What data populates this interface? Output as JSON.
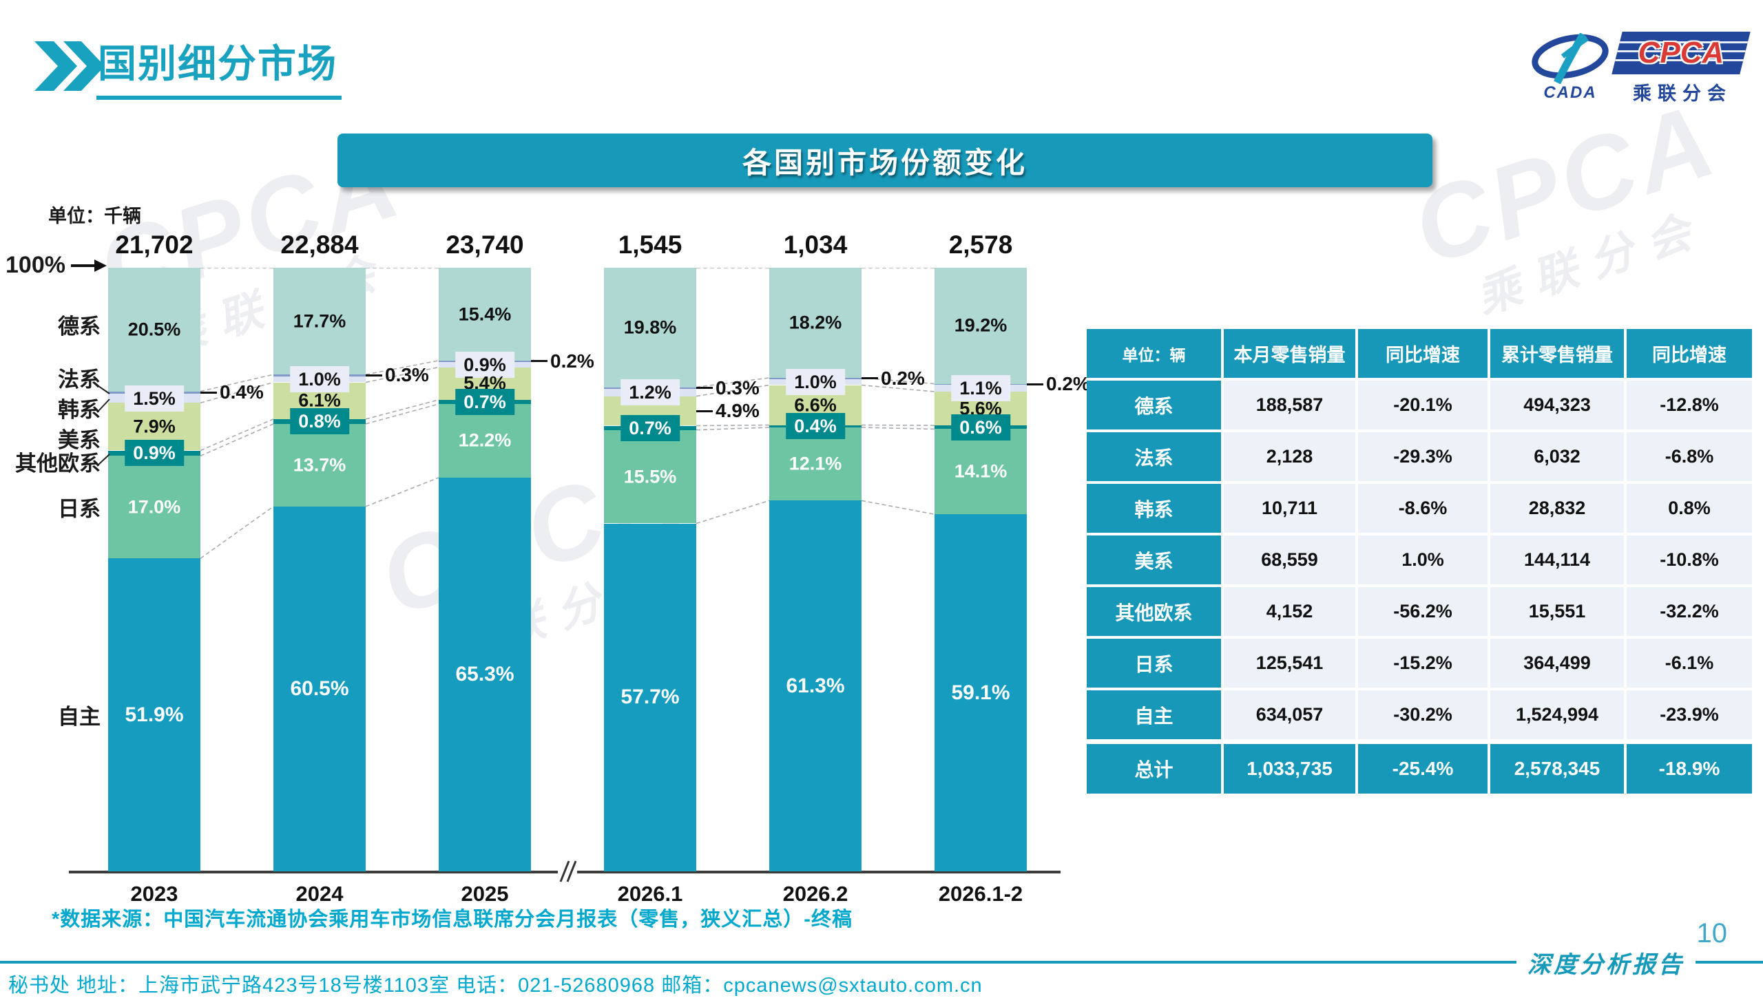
{
  "page_title": "国别细分市场",
  "logo": {
    "cada_text": "CADA",
    "cpca_text": "CPCA",
    "subtitle": "乘联分会"
  },
  "banner_title": "各国别市场份额变化",
  "watermark": {
    "line1": "CPCA",
    "line2": "乘联分会"
  },
  "chart": {
    "unit_label": "单位：千辆",
    "hundred_label": "100%"
  },
  "chart_data": {
    "type": "bar",
    "stacked": true,
    "unit": "千辆",
    "ylim": [
      0,
      100
    ],
    "legend_position": "left",
    "axis_break_after": "2025",
    "categories": [
      "2023",
      "2024",
      "2025",
      "2026.1",
      "2026.2",
      "2026.1-2"
    ],
    "totals": [
      "21,702",
      "22,884",
      "23,740",
      "1,545",
      "1,034",
      "2,578"
    ],
    "series": [
      {
        "name": "德系",
        "values": [
          20.5,
          17.7,
          15.4,
          19.8,
          18.2,
          19.2
        ],
        "color": "#afd8d2",
        "label": "inside",
        "label_color": "#111111"
      },
      {
        "name": "法系",
        "values": [
          0.4,
          0.3,
          0.2,
          0.3,
          0.2,
          0.2
        ],
        "color": "#8099c9",
        "label": "outside",
        "label_color": "#111111"
      },
      {
        "name": "韩系",
        "values": [
          1.5,
          1.0,
          0.9,
          1.2,
          1.0,
          1.1
        ],
        "color": "#dce3f2",
        "label": "box-light",
        "label_color": "#111111",
        "box_color": "#eaedf7"
      },
      {
        "name": "美系",
        "values": [
          7.9,
          6.1,
          5.4,
          4.9,
          6.6,
          5.6
        ],
        "color": "#ccdfa1",
        "label": "inside",
        "label_color": "#111111",
        "outside_at": [
          "2026.1"
        ]
      },
      {
        "name": "其他欧系",
        "values": [
          0.9,
          0.8,
          0.7,
          0.7,
          0.4,
          0.6
        ],
        "color": "#00898d",
        "label": "box-dark",
        "label_color": "#ffffff",
        "box_color": "#00898d"
      },
      {
        "name": "日系",
        "values": [
          17.0,
          13.7,
          12.2,
          15.5,
          12.1,
          14.1
        ],
        "color": "#6ec5a4",
        "label": "inside",
        "label_color": "#ffffff"
      },
      {
        "name": "自主",
        "values": [
          51.9,
          60.5,
          65.3,
          57.7,
          61.3,
          59.1
        ],
        "color": "#169cbe",
        "label": "inside",
        "label_color": "#ffffff",
        "label_size": 30
      }
    ]
  },
  "table": {
    "corner": "单位：辆",
    "headers": [
      "本月零售销量",
      "同比增速",
      "累计零售销量",
      "同比增速"
    ],
    "rows": [
      {
        "label": "德系",
        "cells": [
          "188,587",
          "-20.1%",
          "494,323",
          "-12.8%"
        ]
      },
      {
        "label": "法系",
        "cells": [
          "2,128",
          "-29.3%",
          "6,032",
          "-6.8%"
        ]
      },
      {
        "label": "韩系",
        "cells": [
          "10,711",
          "-8.6%",
          "28,832",
          "0.8%"
        ]
      },
      {
        "label": "美系",
        "cells": [
          "68,559",
          "1.0%",
          "144,114",
          "-10.8%"
        ]
      },
      {
        "label": "其他欧系",
        "cells": [
          "4,152",
          "-56.2%",
          "15,551",
          "-32.2%"
        ]
      },
      {
        "label": "日系",
        "cells": [
          "125,541",
          "-15.2%",
          "364,499",
          "-6.1%"
        ]
      },
      {
        "label": "自主",
        "cells": [
          "634,057",
          "-30.2%",
          "1,524,994",
          "-23.9%"
        ]
      }
    ],
    "total": {
      "label": "总计",
      "cells": [
        "1,033,735",
        "-25.4%",
        "2,578,345",
        "-18.9%"
      ]
    }
  },
  "footnote": "*数据来源：中国汽车流通协会乘用车市场信息联席分会月报表（零售，狭义汇总）-终稿",
  "footer_text": "秘书处  地址：上海市武宁路423号18号楼1103室  电话：021-52680968  邮箱：cpcanews@sxtauto.com.cn",
  "page_footer": {
    "page_number": "10",
    "report_label": "深度分析报告"
  },
  "colors": {
    "accent": "#1799ba",
    "bright_cyan": "#00a8ce",
    "title_teal": "#18a2c0",
    "logo_blue": "#23479b",
    "logo_red": "#d93a35"
  }
}
